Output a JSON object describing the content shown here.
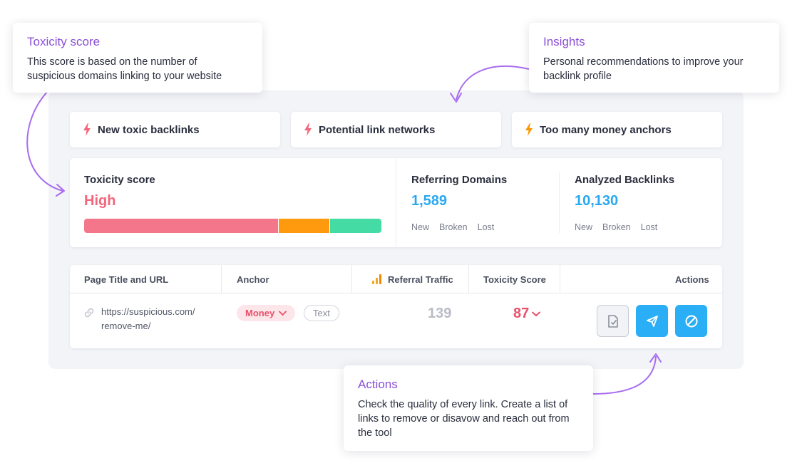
{
  "insights": [
    {
      "label": "New toxic backlinks",
      "bolt_color": "#f3667c"
    },
    {
      "label": "Potential link networks",
      "bolt_color": "#f3667c"
    },
    {
      "label": "Too many money anchors",
      "bolt_color": "#ff9500"
    }
  ],
  "toxicity": {
    "label": "Toxicity score",
    "value": "High",
    "segments": [
      {
        "color": "#f3768a"
      },
      {
        "color": "#ff9a0f"
      },
      {
        "color": "#45dba4"
      }
    ]
  },
  "referring_domains": {
    "label": "Referring Domains",
    "value": "1,589",
    "sub": [
      "New",
      "Broken",
      "Lost"
    ]
  },
  "analyzed_backlinks": {
    "label": "Analyzed Backlinks",
    "value": "10,130",
    "sub": [
      "New",
      "Broken",
      "Lost"
    ]
  },
  "table": {
    "headers": {
      "page": "Page Title and URL",
      "anchor": "Anchor",
      "traffic": "Referral Traffic",
      "toxicity": "Toxicity Score",
      "actions": "Actions"
    },
    "row": {
      "url_line1": "https://suspicious.com/",
      "url_line2": "remove-me/",
      "anchor_money": "Money",
      "anchor_text": "Text",
      "traffic": "139",
      "toxicity": "87"
    }
  },
  "tooltips": {
    "toxicity": {
      "title": "Toxicity score",
      "text": "This score is based on the number of suspicious domains linking to your website"
    },
    "insights": {
      "title": "Insights",
      "text": "Personal recommendations to improve your backlink profile"
    },
    "actions": {
      "title": "Actions",
      "text": "Check the quality of every link. Create a list of links to remove or disavow and reach out from the tool"
    }
  },
  "colors": {
    "accent_purple": "#8a4fd6",
    "accent_blue": "#2aaef5",
    "toxic_red": "#e8506a"
  }
}
